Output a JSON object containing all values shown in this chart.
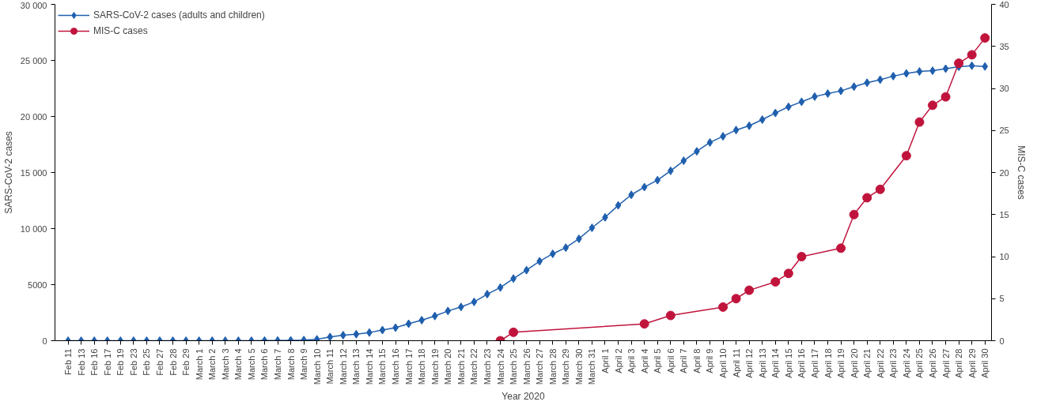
{
  "chart_data": {
    "type": "line",
    "xlabel": "Year 2020",
    "ylabel": "SARS-CoV-2 cases",
    "y2label": "MIS-C cases",
    "categories": [
      "Feb 11",
      "Feb 13",
      "Feb 16",
      "Feb 17",
      "Feb 19",
      "Feb 23",
      "Feb 25",
      "Feb 27",
      "Feb 28",
      "Feb 29",
      "March 1",
      "March 2",
      "March 3",
      "March 4",
      "March 5",
      "March 6",
      "March 7",
      "March 8",
      "March 9",
      "March 10",
      "March 11",
      "March 12",
      "March 13",
      "March 14",
      "March 15",
      "March 16",
      "March 17",
      "March 18",
      "March 19",
      "March 20",
      "March 21",
      "March 22",
      "March 23",
      "March 24",
      "March 25",
      "March 26",
      "March 27",
      "March 28",
      "March 29",
      "March 30",
      "March 31",
      "April 1",
      "April 2",
      "April 3",
      "April 4",
      "April 5",
      "April 6",
      "April 7",
      "April 8",
      "April 9",
      "April 10",
      "April 11",
      "April 12",
      "April 13",
      "April 14",
      "April 15",
      "April 16",
      "April 17",
      "April 18",
      "April 19",
      "April 20",
      "April 21",
      "April 22",
      "April 23",
      "April 24",
      "April 25",
      "April 26",
      "April 27",
      "April 28",
      "April 29",
      "April 30"
    ],
    "series": [
      {
        "name": "SARS-CoV-2 cases (adults and children)",
        "color": "#1f5fae",
        "marker": "diamond",
        "values": [
          0,
          0,
          0,
          0,
          0,
          0,
          0,
          0,
          0,
          0,
          0,
          0,
          0,
          0,
          0,
          10,
          20,
          30,
          60,
          120,
          330,
          490,
          580,
          730,
          950,
          1160,
          1510,
          1830,
          2200,
          2650,
          3010,
          3460,
          4150,
          4740,
          5540,
          6290,
          7090,
          7750,
          8300,
          9090,
          10070,
          11000,
          12070,
          13010,
          13700,
          14320,
          15150,
          16050,
          16890,
          17680,
          18230,
          18790,
          19170,
          19720,
          20310,
          20860,
          21310,
          21770,
          22040,
          22280,
          22660,
          23010,
          23280,
          23600,
          23840,
          24010,
          24080,
          24260,
          24430,
          24530,
          24460
        ]
      },
      {
        "name": "MIS-C cases",
        "color": "#c0143c",
        "marker": "circle",
        "axis": "y2",
        "values": [
          null,
          null,
          null,
          null,
          null,
          null,
          null,
          null,
          null,
          null,
          null,
          null,
          null,
          null,
          null,
          null,
          null,
          null,
          null,
          null,
          null,
          null,
          null,
          null,
          null,
          null,
          null,
          null,
          null,
          null,
          null,
          null,
          null,
          0,
          1,
          null,
          null,
          null,
          null,
          null,
          null,
          null,
          null,
          null,
          2,
          null,
          3,
          null,
          null,
          null,
          4,
          5,
          6,
          null,
          7,
          8,
          10,
          null,
          null,
          11,
          15,
          17,
          18,
          null,
          22,
          26,
          28,
          29,
          33,
          34,
          36
        ]
      }
    ],
    "ylim": [
      0,
      30000
    ],
    "yticks": [
      0,
      {
        "value": 5000,
        "label": "5000"
      },
      {
        "value": 10000,
        "label": "10 000"
      },
      {
        "value": 15000,
        "label": "15 000"
      },
      {
        "value": 20000,
        "label": "20 000"
      },
      {
        "value": 25000,
        "label": "25 000"
      },
      {
        "value": 30000,
        "label": "30 000"
      }
    ],
    "y2lim": [
      0,
      40
    ],
    "y2ticks": [
      0,
      5,
      10,
      15,
      20,
      25,
      30,
      35,
      40
    ],
    "legend": "top left",
    "grid": false,
    "line_style": "solid"
  }
}
